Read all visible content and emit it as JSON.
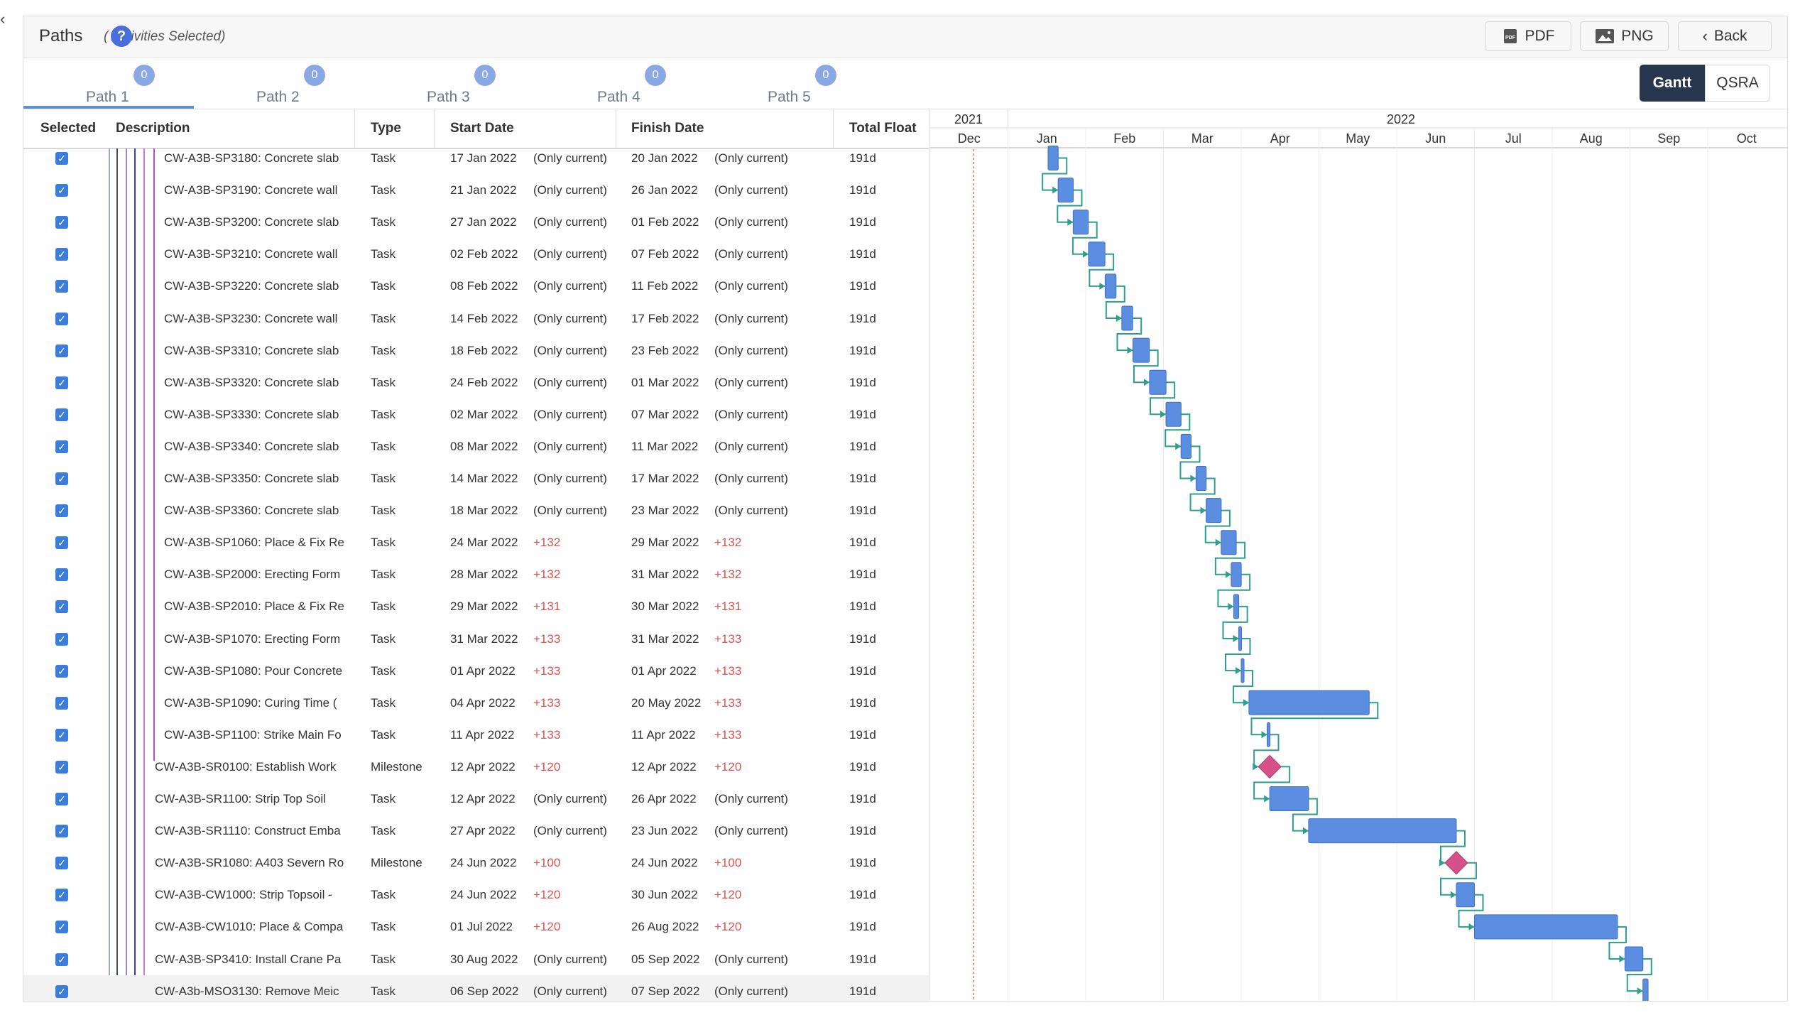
{
  "header": {
    "title": "Paths",
    "subtitle": "(  Activities Selected)",
    "help": "?",
    "pdf": "PDF",
    "png": "PNG",
    "back": "Back"
  },
  "tabs": [
    {
      "label": "Path 1",
      "count": "0"
    },
    {
      "label": "Path 2",
      "count": "0"
    },
    {
      "label": "Path 3",
      "count": "0"
    },
    {
      "label": "Path 4",
      "count": "0"
    },
    {
      "label": "Path 5",
      "count": "0"
    }
  ],
  "views": {
    "gantt": "Gantt",
    "qsra": "QSRA"
  },
  "columns": {
    "selected": "Selected",
    "description": "Description",
    "type": "Type",
    "start": "Start Date",
    "finish": "Finish Date",
    "float": "Total Float"
  },
  "timeline": {
    "years": [
      "2021",
      "2022"
    ],
    "months": [
      "Dec",
      "Jan",
      "Feb",
      "Mar",
      "Apr",
      "May",
      "Jun",
      "Jul",
      "Aug",
      "Sep",
      "Oct"
    ]
  },
  "rows": [
    {
      "desc": "CW-A3B-SP3180: Concrete slab",
      "type": "Task",
      "start": "17 Jan 2022",
      "start_note": "(Only current)",
      "finish": "20 Jan 2022",
      "finish_note": "(Only current)",
      "float": "191d"
    },
    {
      "desc": "CW-A3B-SP3190: Concrete wall",
      "type": "Task",
      "start": "21 Jan 2022",
      "start_note": "(Only current)",
      "finish": "26 Jan 2022",
      "finish_note": "(Only current)",
      "float": "191d"
    },
    {
      "desc": "CW-A3B-SP3200: Concrete slab",
      "type": "Task",
      "start": "27 Jan 2022",
      "start_note": "(Only current)",
      "finish": "01 Feb 2022",
      "finish_note": "(Only current)",
      "float": "191d"
    },
    {
      "desc": "CW-A3B-SP3210: Concrete wall",
      "type": "Task",
      "start": "02 Feb 2022",
      "start_note": "(Only current)",
      "finish": "07 Feb 2022",
      "finish_note": "(Only current)",
      "float": "191d"
    },
    {
      "desc": "CW-A3B-SP3220: Concrete slab",
      "type": "Task",
      "start": "08 Feb 2022",
      "start_note": "(Only current)",
      "finish": "11 Feb 2022",
      "finish_note": "(Only current)",
      "float": "191d"
    },
    {
      "desc": "CW-A3B-SP3230: Concrete wall",
      "type": "Task",
      "start": "14 Feb 2022",
      "start_note": "(Only current)",
      "finish": "17 Feb 2022",
      "finish_note": "(Only current)",
      "float": "191d"
    },
    {
      "desc": "CW-A3B-SP3310: Concrete slab",
      "type": "Task",
      "start": "18 Feb 2022",
      "start_note": "(Only current)",
      "finish": "23 Feb 2022",
      "finish_note": "(Only current)",
      "float": "191d"
    },
    {
      "desc": "CW-A3B-SP3320: Concrete slab",
      "type": "Task",
      "start": "24 Feb 2022",
      "start_note": "(Only current)",
      "finish": "01 Mar 2022",
      "finish_note": "(Only current)",
      "float": "191d"
    },
    {
      "desc": "CW-A3B-SP3330: Concrete slab",
      "type": "Task",
      "start": "02 Mar 2022",
      "start_note": "(Only current)",
      "finish": "07 Mar 2022",
      "finish_note": "(Only current)",
      "float": "191d"
    },
    {
      "desc": "CW-A3B-SP3340: Concrete slab",
      "type": "Task",
      "start": "08 Mar 2022",
      "start_note": "(Only current)",
      "finish": "11 Mar 2022",
      "finish_note": "(Only current)",
      "float": "191d"
    },
    {
      "desc": "CW-A3B-SP3350: Concrete slab",
      "type": "Task",
      "start": "14 Mar 2022",
      "start_note": "(Only current)",
      "finish": "17 Mar 2022",
      "finish_note": "(Only current)",
      "float": "191d"
    },
    {
      "desc": "CW-A3B-SP3360: Concrete slab",
      "type": "Task",
      "start": "18 Mar 2022",
      "start_note": "(Only current)",
      "finish": "23 Mar 2022",
      "finish_note": "(Only current)",
      "float": "191d"
    },
    {
      "desc": "CW-A3B-SP1060: Place & Fix Re",
      "type": "Task",
      "start": "24 Mar 2022",
      "start_note": "+132",
      "finish": "29 Mar 2022",
      "finish_note": "+132",
      "float": "191d"
    },
    {
      "desc": "CW-A3B-SP2000: Erecting Form",
      "type": "Task",
      "start": "28 Mar 2022",
      "start_note": "+132",
      "finish": "31 Mar 2022",
      "finish_note": "+132",
      "float": "191d"
    },
    {
      "desc": "CW-A3B-SP2010: Place & Fix Re",
      "type": "Task",
      "start": "29 Mar 2022",
      "start_note": "+131",
      "finish": "30 Mar 2022",
      "finish_note": "+131",
      "float": "191d"
    },
    {
      "desc": "CW-A3B-SP1070: Erecting Form",
      "type": "Task",
      "start": "31 Mar 2022",
      "start_note": "+133",
      "finish": "31 Mar 2022",
      "finish_note": "+133",
      "float": "191d"
    },
    {
      "desc": "CW-A3B-SP1080: Pour Concrete",
      "type": "Task",
      "start": "01 Apr 2022",
      "start_note": "+133",
      "finish": "01 Apr 2022",
      "finish_note": "+133",
      "float": "191d"
    },
    {
      "desc": "CW-A3B-SP1090: Curing Time (",
      "type": "Task",
      "start": "04 Apr 2022",
      "start_note": "+133",
      "finish": "20 May 2022",
      "finish_note": "+133",
      "float": "191d"
    },
    {
      "desc": "CW-A3B-SP1100: Strike Main Fo",
      "type": "Task",
      "start": "11 Apr 2022",
      "start_note": "+133",
      "finish": "11 Apr 2022",
      "finish_note": "+133",
      "float": "191d"
    },
    {
      "desc": "CW-A3B-SR0100: Establish Work",
      "type": "Milestone",
      "start": "12 Apr 2022",
      "start_note": "+120",
      "finish": "12 Apr 2022",
      "finish_note": "+120",
      "float": "191d"
    },
    {
      "desc": "CW-A3B-SR1100: Strip Top Soil",
      "type": "Task",
      "start": "12 Apr 2022",
      "start_note": "(Only current)",
      "finish": "26 Apr 2022",
      "finish_note": "(Only current)",
      "float": "191d"
    },
    {
      "desc": "CW-A3B-SR1110: Construct Emba",
      "type": "Task",
      "start": "27 Apr 2022",
      "start_note": "(Only current)",
      "finish": "23 Jun 2022",
      "finish_note": "(Only current)",
      "float": "191d"
    },
    {
      "desc": "CW-A3B-SR1080: A403 Severn Ro",
      "type": "Milestone",
      "start": "24 Jun 2022",
      "start_note": "+100",
      "finish": "24 Jun 2022",
      "finish_note": "+100",
      "float": "191d"
    },
    {
      "desc": "CW-A3B-CW1000: Strip Topsoil -",
      "type": "Task",
      "start": "24 Jun 2022",
      "start_note": "+120",
      "finish": "30 Jun 2022",
      "finish_note": "+120",
      "float": "191d"
    },
    {
      "desc": "CW-A3B-CW1010: Place & Compa",
      "type": "Task",
      "start": "01 Jul 2022",
      "start_note": "+120",
      "finish": "26 Aug 2022",
      "finish_note": "+120",
      "float": "191d"
    },
    {
      "desc": "CW-A3B-SP3410: Install Crane Pa",
      "type": "Task",
      "start": "30 Aug 2022",
      "start_note": "(Only current)",
      "finish": "05 Sep 2022",
      "finish_note": "(Only current)",
      "float": "191d"
    },
    {
      "desc": "CW-A3b-MSO3130: Remove Meic",
      "type": "Task",
      "start": "06 Sep 2022",
      "start_note": "(Only current)",
      "finish": "07 Sep 2022",
      "finish_note": "(Only current)",
      "float": "191d"
    }
  ],
  "colors": {
    "bar": "#5b8ee0",
    "milestone": "#d6508a",
    "link": "#2e9e8f",
    "today": "#e07a5f",
    "delta": "#d9534f",
    "accent": "#3b7ddd"
  }
}
